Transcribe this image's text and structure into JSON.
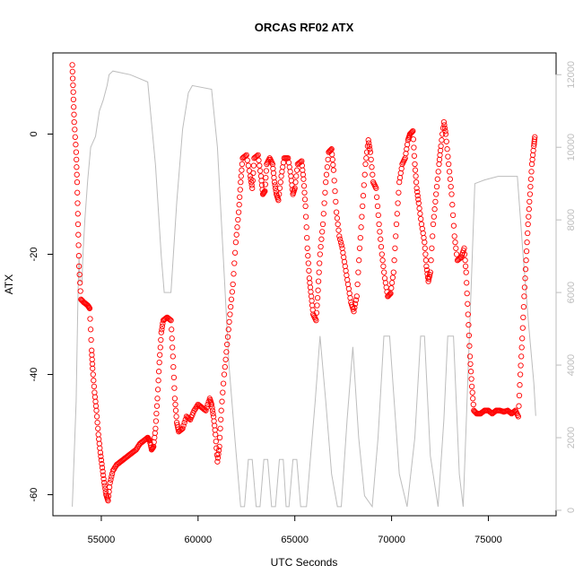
{
  "chart_data": {
    "type": "scatter",
    "title": "ORCAS RF02 ATX",
    "xlabel": "UTC Seconds",
    "ylabel": "ATX",
    "xlim": [
      52500,
      78500
    ],
    "ylim": [
      -63.5,
      13.5
    ],
    "y2lim": [
      -150,
      12600
    ],
    "x_ticks": [
      55000,
      60000,
      65000,
      70000,
      75000
    ],
    "y_ticks": [
      -60,
      -40,
      -20,
      0
    ],
    "y2_ticks": [
      0,
      2000,
      4000,
      6000,
      8000,
      10000,
      12000
    ],
    "grid": false,
    "legend": "none",
    "series": [
      {
        "marker": "open-circle",
        "color": "#ff0000",
        "points": [
          [
            53500,
            11.5
          ],
          [
            53550,
            7.0
          ],
          [
            53600,
            2.0
          ],
          [
            53700,
            -3.0
          ],
          [
            53750,
            -8.0
          ],
          [
            53800,
            -15.0
          ],
          [
            53850,
            -22.0
          ],
          [
            53950,
            -27.5
          ],
          [
            54100,
            -28.0
          ],
          [
            54300,
            -28.5
          ],
          [
            54400,
            -29.0
          ],
          [
            54500,
            -36.0
          ],
          [
            54550,
            -39.0
          ],
          [
            54650,
            -43.0
          ],
          [
            54750,
            -46.0
          ],
          [
            54850,
            -50.0
          ],
          [
            54950,
            -53.0
          ],
          [
            55050,
            -55.5
          ],
          [
            55150,
            -58.0
          ],
          [
            55250,
            -60.0
          ],
          [
            55350,
            -61.0
          ],
          [
            55450,
            -58.0
          ],
          [
            55600,
            -56.0
          ],
          [
            55800,
            -55.0
          ],
          [
            56000,
            -54.5
          ],
          [
            56200,
            -54.0
          ],
          [
            56400,
            -53.5
          ],
          [
            56600,
            -53.0
          ],
          [
            56800,
            -52.5
          ],
          [
            57000,
            -51.5
          ],
          [
            57200,
            -51.0
          ],
          [
            57400,
            -50.5
          ],
          [
            57500,
            -51.0
          ],
          [
            57600,
            -52.5
          ],
          [
            57700,
            -52.0
          ],
          [
            57800,
            -49.0
          ],
          [
            57900,
            -44.0
          ],
          [
            58000,
            -38.0
          ],
          [
            58100,
            -33.0
          ],
          [
            58200,
            -31.0
          ],
          [
            58400,
            -30.5
          ],
          [
            58600,
            -31.0
          ],
          [
            58700,
            -37.0
          ],
          [
            58800,
            -44.0
          ],
          [
            58900,
            -48.0
          ],
          [
            59000,
            -49.5
          ],
          [
            59200,
            -49.0
          ],
          [
            59400,
            -47.0
          ],
          [
            59600,
            -47.5
          ],
          [
            59800,
            -46.0
          ],
          [
            60000,
            -45.0
          ],
          [
            60200,
            -45.5
          ],
          [
            60400,
            -46.0
          ],
          [
            60600,
            -44.0
          ],
          [
            60700,
            -45.0
          ],
          [
            60800,
            -47.0
          ],
          [
            60900,
            -50.0
          ],
          [
            61000,
            -54.5
          ],
          [
            61100,
            -52.0
          ],
          [
            61200,
            -46.0
          ],
          [
            61350,
            -40.0
          ],
          [
            61500,
            -35.0
          ],
          [
            61650,
            -30.0
          ],
          [
            61800,
            -25.0
          ],
          [
            61950,
            -18.0
          ],
          [
            62100,
            -13.0
          ],
          [
            62200,
            -8.0
          ],
          [
            62300,
            -4.0
          ],
          [
            62500,
            -3.5
          ],
          [
            62700,
            -7.0
          ],
          [
            62800,
            -9.0
          ],
          [
            62900,
            -4.0
          ],
          [
            63100,
            -3.5
          ],
          [
            63250,
            -7.0
          ],
          [
            63350,
            -10.0
          ],
          [
            63450,
            -9.5
          ],
          [
            63550,
            -5.0
          ],
          [
            63700,
            -4.0
          ],
          [
            63850,
            -5.0
          ],
          [
            63950,
            -8.0
          ],
          [
            64050,
            -10.0
          ],
          [
            64150,
            -11.0
          ],
          [
            64300,
            -7.0
          ],
          [
            64450,
            -4.0
          ],
          [
            64650,
            -4.0
          ],
          [
            64800,
            -7.0
          ],
          [
            64900,
            -10.0
          ],
          [
            65000,
            -9.0
          ],
          [
            65150,
            -5.0
          ],
          [
            65350,
            -4.5
          ],
          [
            65450,
            -7.5
          ],
          [
            65550,
            -12.0
          ],
          [
            65650,
            -19.0
          ],
          [
            65750,
            -24.0
          ],
          [
            65850,
            -27.0
          ],
          [
            65950,
            -30.0
          ],
          [
            66100,
            -31.0
          ],
          [
            66200,
            -26.0
          ],
          [
            66300,
            -20.0
          ],
          [
            66450,
            -15.0
          ],
          [
            66600,
            -8.0
          ],
          [
            66750,
            -3.0
          ],
          [
            66900,
            -2.5
          ],
          [
            67000,
            -6.0
          ],
          [
            67150,
            -13.0
          ],
          [
            67300,
            -17.0
          ],
          [
            67450,
            -19.0
          ],
          [
            67600,
            -22.0
          ],
          [
            67750,
            -25.0
          ],
          [
            67900,
            -28.0
          ],
          [
            68050,
            -29.5
          ],
          [
            68200,
            -27.0
          ],
          [
            68350,
            -19.0
          ],
          [
            68500,
            -12.0
          ],
          [
            68650,
            -5.0
          ],
          [
            68800,
            -1.0
          ],
          [
            68900,
            -3.0
          ],
          [
            69050,
            -8.0
          ],
          [
            69200,
            -9.0
          ],
          [
            69350,
            -15.0
          ],
          [
            69500,
            -20.0
          ],
          [
            69650,
            -24.0
          ],
          [
            69800,
            -27.0
          ],
          [
            69950,
            -26.5
          ],
          [
            70100,
            -23.0
          ],
          [
            70250,
            -15.0
          ],
          [
            70400,
            -8.0
          ],
          [
            70550,
            -5.0
          ],
          [
            70700,
            -4.0
          ],
          [
            70850,
            -1.0
          ],
          [
            70950,
            0.0
          ],
          [
            71100,
            0.5
          ],
          [
            71200,
            -5.0
          ],
          [
            71300,
            -9.0
          ],
          [
            71400,
            -11.5
          ],
          [
            71550,
            -15.0
          ],
          [
            71700,
            -18.0
          ],
          [
            71800,
            -22.0
          ],
          [
            71900,
            -24.5
          ],
          [
            72000,
            -23.0
          ],
          [
            72150,
            -15.0
          ],
          [
            72300,
            -10.0
          ],
          [
            72450,
            -5.0
          ],
          [
            72550,
            -2.0
          ],
          [
            72700,
            2.0
          ],
          [
            72800,
            0.0
          ],
          [
            72950,
            -5.0
          ],
          [
            73100,
            -10.0
          ],
          [
            73250,
            -17.0
          ],
          [
            73400,
            -21.0
          ],
          [
            73600,
            -20.5
          ],
          [
            73750,
            -19.0
          ],
          [
            73850,
            -23.0
          ],
          [
            73950,
            -30.0
          ],
          [
            74050,
            -37.0
          ],
          [
            74150,
            -42.0
          ],
          [
            74250,
            -46.0
          ],
          [
            74400,
            -46.5
          ],
          [
            74600,
            -46.5
          ],
          [
            74800,
            -46.0
          ],
          [
            75000,
            -46.0
          ],
          [
            75200,
            -46.5
          ],
          [
            75400,
            -46.0
          ],
          [
            75600,
            -46.0
          ],
          [
            75800,
            -46.2
          ],
          [
            76000,
            -46.0
          ],
          [
            76200,
            -46.5
          ],
          [
            76400,
            -46.0
          ],
          [
            76550,
            -47.0
          ],
          [
            76650,
            -40.0
          ],
          [
            76750,
            -34.0
          ],
          [
            76850,
            -27.0
          ],
          [
            76950,
            -21.0
          ],
          [
            77050,
            -15.0
          ],
          [
            77150,
            -10.0
          ],
          [
            77250,
            -5.0
          ],
          [
            77350,
            -2.0
          ],
          [
            77400,
            -0.5
          ]
        ]
      },
      {
        "marker": "line",
        "color": "#bdbdbd",
        "axis": "right",
        "points": [
          [
            53500,
            100
          ],
          [
            53700,
            3000
          ],
          [
            53800,
            6000
          ],
          [
            53850,
            7000
          ],
          [
            53900,
            6300
          ],
          [
            54000,
            6300
          ],
          [
            54050,
            7000
          ],
          [
            54150,
            8000
          ],
          [
            54300,
            9100
          ],
          [
            54450,
            10000
          ],
          [
            54700,
            10300
          ],
          [
            54900,
            11000
          ],
          [
            55100,
            11300
          ],
          [
            55300,
            11700
          ],
          [
            55400,
            12000
          ],
          [
            55600,
            12100
          ],
          [
            56500,
            12000
          ],
          [
            57400,
            11800
          ],
          [
            57800,
            9500
          ],
          [
            58100,
            7000
          ],
          [
            58250,
            6000
          ],
          [
            58600,
            6000
          ],
          [
            58900,
            8500
          ],
          [
            59200,
            10500
          ],
          [
            59500,
            11500
          ],
          [
            59700,
            11700
          ],
          [
            60700,
            11600
          ],
          [
            61000,
            10000
          ],
          [
            61300,
            7000
          ],
          [
            61600,
            4000
          ],
          [
            61900,
            2000
          ],
          [
            62200,
            100
          ],
          [
            62400,
            100
          ],
          [
            62600,
            1400
          ],
          [
            62800,
            1400
          ],
          [
            63000,
            100
          ],
          [
            63200,
            100
          ],
          [
            63400,
            1400
          ],
          [
            63600,
            1400
          ],
          [
            63800,
            100
          ],
          [
            64000,
            100
          ],
          [
            64200,
            1400
          ],
          [
            64400,
            1400
          ],
          [
            64550,
            100
          ],
          [
            64700,
            100
          ],
          [
            64900,
            1400
          ],
          [
            65100,
            1400
          ],
          [
            65300,
            100
          ],
          [
            65600,
            100
          ],
          [
            65800,
            1400
          ],
          [
            66050,
            3000
          ],
          [
            66300,
            4800
          ],
          [
            66600,
            3000
          ],
          [
            66900,
            1000
          ],
          [
            67200,
            100
          ],
          [
            67400,
            100
          ],
          [
            67700,
            2500
          ],
          [
            68000,
            4500
          ],
          [
            68300,
            2000
          ],
          [
            68600,
            400
          ],
          [
            69000,
            100
          ],
          [
            69300,
            2000
          ],
          [
            69600,
            4800
          ],
          [
            69900,
            4800
          ],
          [
            70400,
            1000
          ],
          [
            70800,
            100
          ],
          [
            71200,
            2000
          ],
          [
            71500,
            4800
          ],
          [
            71700,
            4800
          ],
          [
            72000,
            1500
          ],
          [
            72400,
            100
          ],
          [
            72700,
            2500
          ],
          [
            72900,
            4800
          ],
          [
            73200,
            4800
          ],
          [
            73500,
            1000
          ],
          [
            73700,
            100
          ],
          [
            73900,
            3000
          ],
          [
            74100,
            6000
          ],
          [
            74300,
            9000
          ],
          [
            74800,
            9100
          ],
          [
            75500,
            9200
          ],
          [
            76500,
            9200
          ],
          [
            76800,
            7000
          ],
          [
            77100,
            5000
          ],
          [
            77350,
            3500
          ],
          [
            77450,
            2600
          ]
        ]
      }
    ]
  }
}
